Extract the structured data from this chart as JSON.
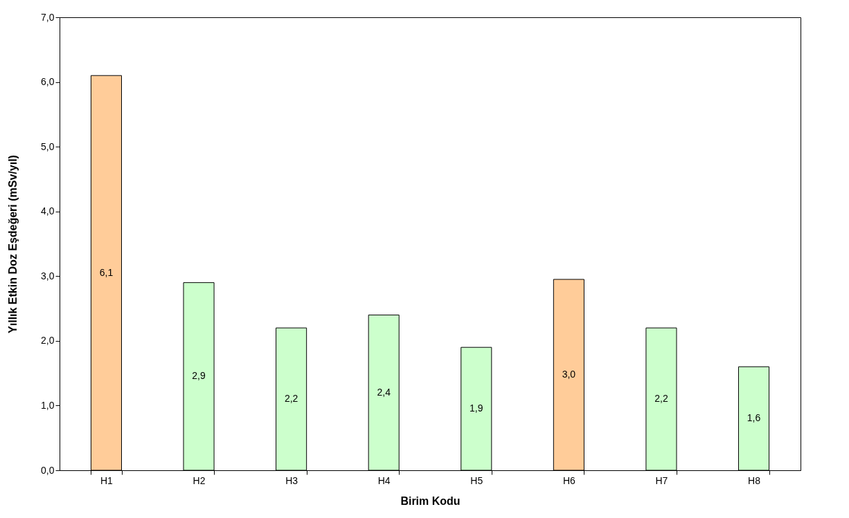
{
  "chart_data": {
    "type": "bar",
    "xlabel": "Birim Kodu",
    "ylabel": "Yıllık Etkin Doz Eşdeğeri (mSv/yıl)",
    "categories": [
      "H1",
      "H2",
      "H3",
      "H4",
      "H5",
      "H6",
      "H7",
      "H8"
    ],
    "values": [
      6.1,
      2.9,
      2.2,
      2.4,
      1.9,
      2.95,
      2.2,
      1.6
    ],
    "value_labels": [
      "6,1",
      "2,9",
      "2,2",
      "2,4",
      "1,9",
      "3,0",
      "2,2",
      "1,6"
    ],
    "colors": [
      "#ffcc99",
      "#ccffcc",
      "#ccffcc",
      "#ccffcc",
      "#ccffcc",
      "#ffcc99",
      "#ccffcc",
      "#ccffcc"
    ],
    "ylim": [
      0,
      7
    ],
    "yticks": [
      {
        "value": 0,
        "label": "0,0"
      },
      {
        "value": 1,
        "label": "1,0"
      },
      {
        "value": 2,
        "label": "2,0"
      },
      {
        "value": 3,
        "label": "3,0"
      },
      {
        "value": 4,
        "label": "4,0"
      },
      {
        "value": 5,
        "label": "5,0"
      },
      {
        "value": 6,
        "label": "6,0"
      },
      {
        "value": 7,
        "label": "7,0"
      }
    ],
    "grid": false
  }
}
